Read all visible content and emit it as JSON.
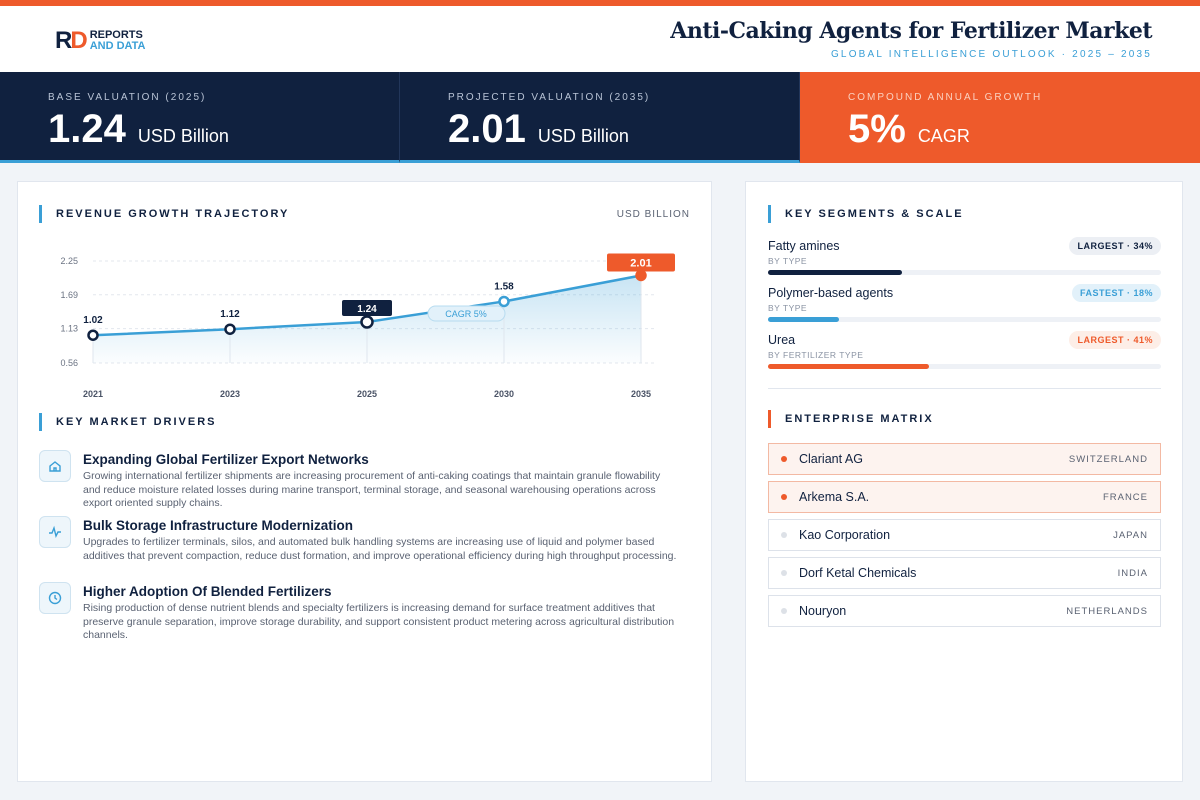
{
  "header": {
    "logo_top": "REPORTS",
    "logo_bottom": "AND DATA",
    "title": "Anti-Caking Agents for Fertilizer Market",
    "subtitle": "GLOBAL INTELLIGENCE OUTLOOK · 2025 – 2035"
  },
  "kpis": [
    {
      "label": "BASE VALUATION (2025)",
      "value": "1.24",
      "unit": "USD Billion"
    },
    {
      "label": "PROJECTED VALUATION (2035)",
      "value": "2.01",
      "unit": "USD Billion"
    },
    {
      "label": "COMPOUND ANNUAL GROWTH",
      "value": "5%",
      "unit": "CAGR"
    }
  ],
  "chart_data": {
    "type": "line",
    "title": "REVENUE GROWTH TRAJECTORY",
    "unit_label": "USD BILLION",
    "annotation": "CAGR 5%",
    "categories": [
      "2021",
      "2023",
      "2025",
      "2030",
      "2035"
    ],
    "values": [
      1.02,
      1.12,
      1.24,
      1.58,
      2.01
    ],
    "color": "#3a9fd6",
    "ylim": [
      0.56,
      2.25
    ],
    "yticks": [
      0.56,
      1.13,
      1.69,
      2.25
    ],
    "grid": true
  },
  "drivers": {
    "title": "KEY MARKET DRIVERS",
    "items": [
      {
        "title": "Expanding Global Fertilizer Export Networks",
        "text": "Growing international fertilizer shipments are increasing procurement of anti-caking coatings that maintain granule flowability and reduce moisture related losses during marine transport, terminal storage, and seasonal warehousing operations across export oriented supply chains."
      },
      {
        "title": "Bulk Storage Infrastructure Modernization",
        "text": "Upgrades to fertilizer terminals, silos, and automated bulk handling systems are increasing use of liquid and polymer based additives that prevent compaction, reduce dust formation, and improve operational efficiency during high throughput processing."
      },
      {
        "title": "Higher Adoption Of Blended Fertilizers",
        "text": "Rising production of dense nutrient blends and specialty fertilizers is increasing demand for surface treatment additives that preserve granule separation, improve storage durability, and support consistent product metering across agricultural distribution channels."
      }
    ]
  },
  "segments": {
    "title": "KEY SEGMENTS & SCALE",
    "items": [
      {
        "name": "Fatty amines",
        "group": "BY TYPE",
        "badge": "LARGEST · 34%",
        "share": 34,
        "color": "#10213f"
      },
      {
        "name": "Polymer-based agents",
        "group": "BY TYPE",
        "badge": "FASTEST · 18%",
        "share": 18,
        "color": "#3a9fd6"
      },
      {
        "name": "Urea",
        "group": "BY FERTILIZER TYPE",
        "badge": "LARGEST · 41%",
        "share": 41,
        "color": "#ee5a2b"
      }
    ]
  },
  "enterprises": {
    "title": "ENTERPRISE MATRIX",
    "items": [
      {
        "name": "Clariant AG",
        "country": "SWITZERLAND",
        "highlight": true
      },
      {
        "name": "Arkema S.A.",
        "country": "FRANCE",
        "highlight": true
      },
      {
        "name": "Kao Corporation",
        "country": "JAPAN",
        "highlight": false
      },
      {
        "name": "Dorf Ketal Chemicals",
        "country": "INDIA",
        "highlight": false
      },
      {
        "name": "Nouryon",
        "country": "NETHERLANDS",
        "highlight": false
      }
    ]
  }
}
